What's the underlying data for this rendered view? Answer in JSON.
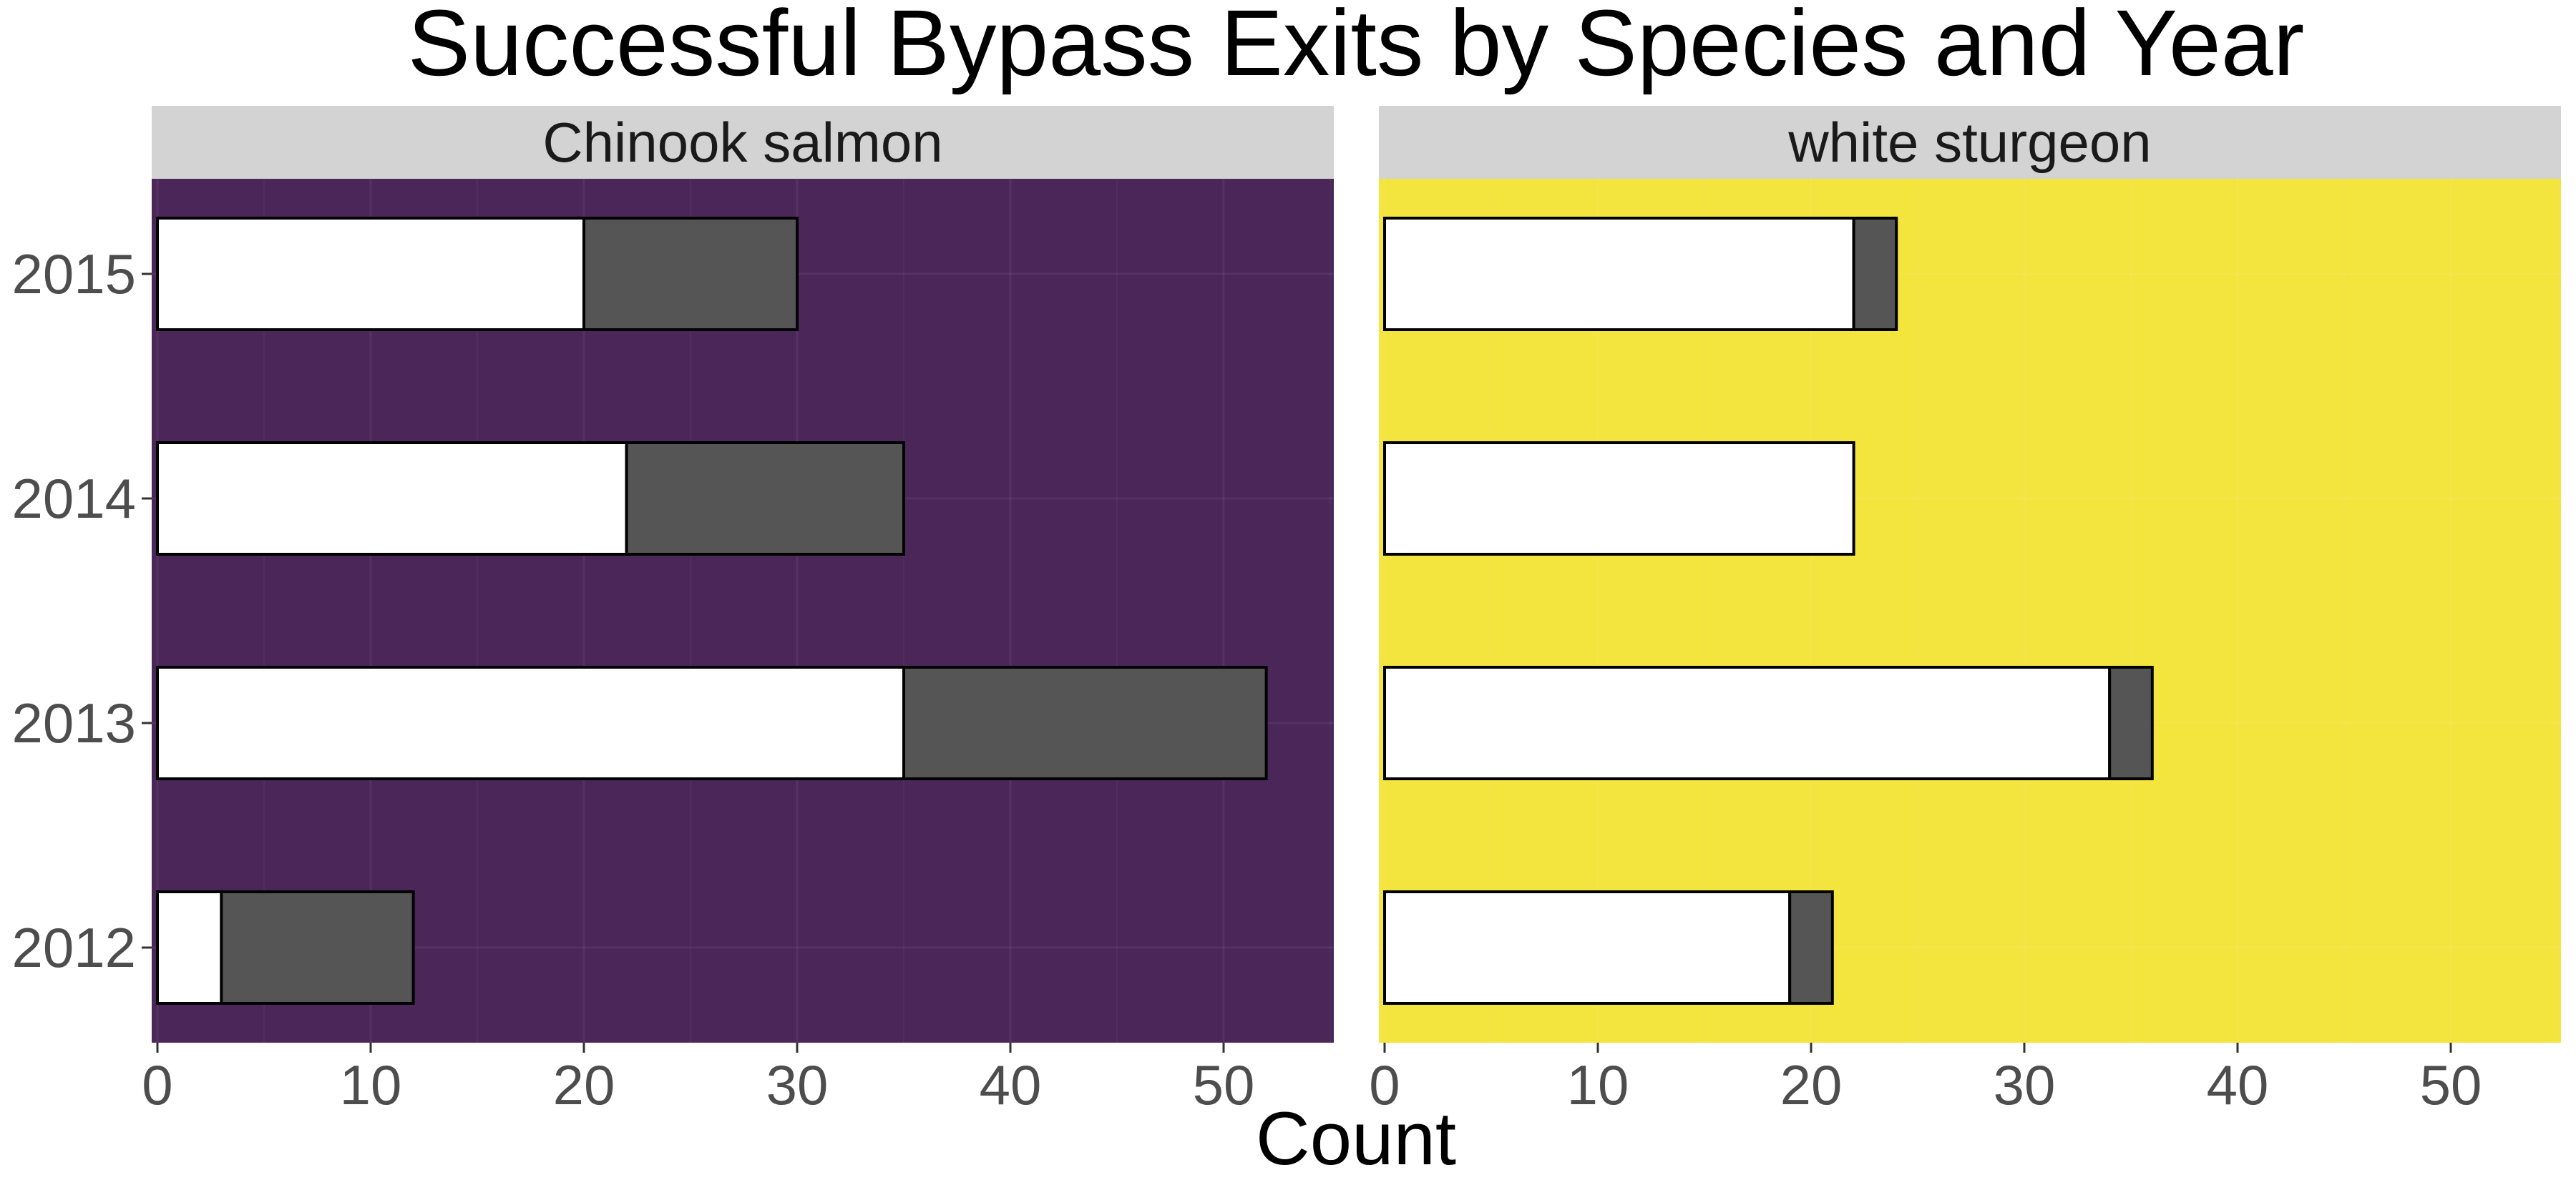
{
  "chart_data": {
    "type": "bar",
    "orientation": "horizontal",
    "stacked": true,
    "title": "Successful Bypass Exits by Species and Year",
    "xlabel": "Count",
    "ylabel": "",
    "xlim": [
      0,
      55
    ],
    "x_ticks": [
      0,
      10,
      20,
      30,
      40,
      50
    ],
    "categories": [
      "2012",
      "2013",
      "2014",
      "2015"
    ],
    "grid": true,
    "legend": "none",
    "panels": [
      {
        "name": "Chinook salmon",
        "background": "#4b2659",
        "series": [
          {
            "fill": "#ffffff",
            "values": [
              3,
              35,
              22,
              20
            ]
          },
          {
            "fill": "#555555",
            "values": [
              9,
              17,
              13,
              10
            ]
          }
        ]
      },
      {
        "name": "white sturgeon",
        "background": "#f4e43e",
        "series": [
          {
            "fill": "#ffffff",
            "values": [
              19,
              34,
              22,
              22
            ]
          },
          {
            "fill": "#555555",
            "values": [
              2,
              2,
              0,
              2
            ]
          }
        ]
      }
    ]
  },
  "colors": {
    "strip": "#d3d3d3",
    "bar_outline": "#000000",
    "tick": "#333333"
  }
}
